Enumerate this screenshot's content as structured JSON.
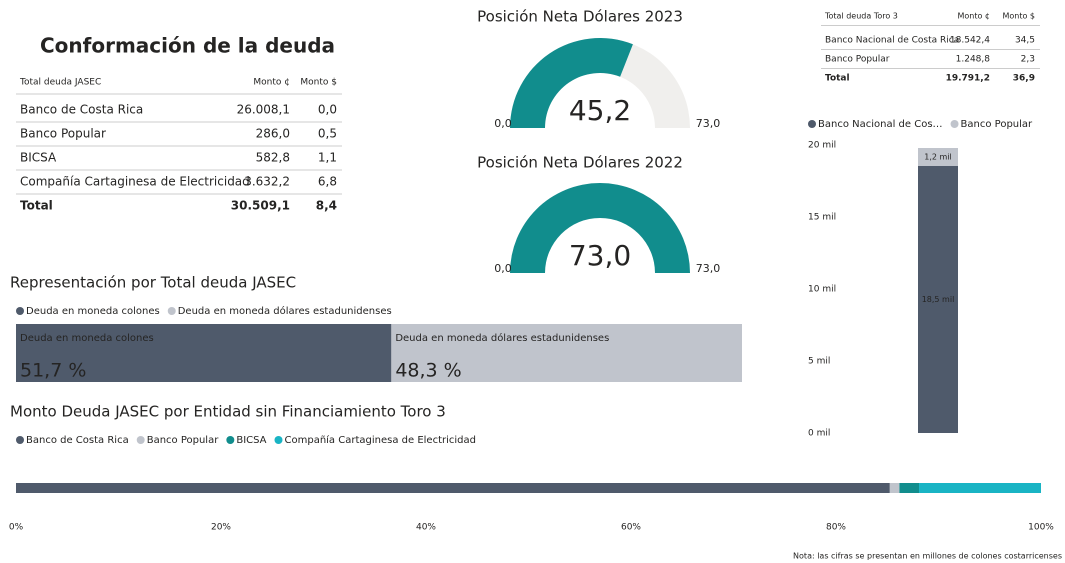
{
  "title": "Conformación de la deuda",
  "table_jasec": {
    "header": [
      "Total deuda JASEC",
      "Monto ¢",
      "Monto $"
    ],
    "rows": [
      [
        "Banco de Costa Rica",
        "26.008,1",
        "0,0"
      ],
      [
        "Banco Popular",
        "286,0",
        "0,5"
      ],
      [
        "BICSA",
        "582,8",
        "1,1"
      ],
      [
        "Compañía Cartaginesa de Electricidad",
        "3.632,2",
        "6,8"
      ]
    ],
    "total": [
      "Total",
      "30.509,1",
      "8,4"
    ]
  },
  "table_toro3": {
    "header": [
      "Total deuda Toro 3",
      "Monto ¢",
      "Monto $"
    ],
    "rows": [
      [
        "Banco Nacional de Costa Rica",
        "18.542,4",
        "34,5"
      ],
      [
        "Banco Popular",
        "1.248,8",
        "2,3"
      ]
    ],
    "total": [
      "Total",
      "19.791,2",
      "36,9"
    ]
  },
  "note": "Nota: las cifras se presentan en millones de colones costarricenses",
  "chart_data": [
    {
      "type": "gauge",
      "title": "Posición Neta Dólares 2023",
      "values": [
        45.2
      ],
      "value_labels": [
        "45,2"
      ],
      "color": "#118d8d",
      "track_color": "#f0efed",
      "xlim": [
        0,
        73
      ],
      "xticks": [
        {
          "value": 0,
          "label": "0,0"
        },
        {
          "value": 73,
          "label": "73,0"
        }
      ]
    },
    {
      "type": "gauge",
      "title": "Posición Neta Dólares 2022",
      "values": [
        73
      ],
      "value_labels": [
        "73,0"
      ],
      "color": "#118d8d",
      "track_color": "#f0efed",
      "xlim": [
        0,
        73
      ],
      "xticks": [
        {
          "value": 0,
          "label": "0,0"
        },
        {
          "value": 73,
          "label": "73,0"
        }
      ]
    },
    {
      "type": "stacked_column",
      "categories": [
        null
      ],
      "series": [
        {
          "name": "Banco Nacional de Cos…",
          "color": "#4f5a6b",
          "values": [
            18.5424
          ],
          "value_labels": [
            "18,5 mil"
          ]
        },
        {
          "name": "Banco Popular",
          "color": "#c0c4cc",
          "values": [
            1.2488
          ],
          "value_labels": [
            "1,2 mil"
          ]
        }
      ],
      "ylim": [
        0,
        20
      ],
      "yticks": [
        {
          "value": 0,
          "label": "0 mil"
        },
        {
          "value": 5,
          "label": "5 mil"
        },
        {
          "value": 10,
          "label": "10 mil"
        },
        {
          "value": 15,
          "label": "15 mil"
        },
        {
          "value": 20,
          "label": "20 mil"
        }
      ]
    },
    {
      "type": "stacked_bar",
      "title": "Representación por Total deuda JASEC",
      "categories": [
        null
      ],
      "series": [
        {
          "name": "Deuda en moneda colones",
          "color": "#4f5a6b",
          "values": [
            51.7
          ],
          "value_labels": [
            "51,7 %"
          ]
        },
        {
          "name": "Deuda en moneda dólares estadunidenses",
          "color": "#c0c4cc",
          "values": [
            48.3
          ],
          "value_labels": [
            "48,3 %"
          ]
        }
      ],
      "xlim": [
        0,
        100
      ]
    },
    {
      "type": "stacked_bar",
      "title": "Monto Deuda JASEC por Entidad sin Financiamiento Toro 3",
      "categories": [
        null
      ],
      "series": [
        {
          "name": "Banco de Costa Rica",
          "color": "#4f5a6b",
          "values": [
            85.25
          ]
        },
        {
          "name": "Banco Popular",
          "color": "#c0c4cc",
          "values": [
            0.94
          ]
        },
        {
          "name": "BICSA",
          "color": "#118d8d",
          "values": [
            1.91
          ]
        },
        {
          "name": "Compañía Cartaginesa de Electricidad",
          "color": "#19b4c4",
          "values": [
            11.9
          ]
        }
      ],
      "xlim": [
        0,
        100
      ],
      "xticks": [
        {
          "value": 0,
          "label": "0%"
        },
        {
          "value": 20,
          "label": "20%"
        },
        {
          "value": 40,
          "label": "40%"
        },
        {
          "value": 60,
          "label": "60%"
        },
        {
          "value": 80,
          "label": "80%"
        },
        {
          "value": 100,
          "label": "100%"
        }
      ]
    }
  ]
}
